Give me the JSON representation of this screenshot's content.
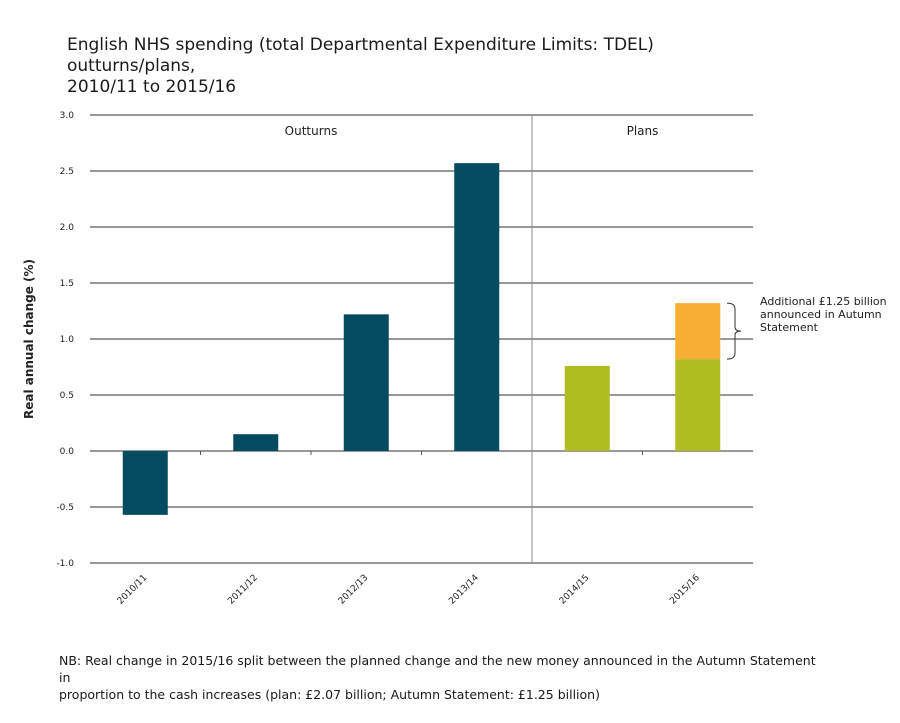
{
  "title": {
    "line1": "English NHS spending (total Departmental Expenditure Limits: TDEL) outturns/plans,",
    "line2": "2010/11 to 2015/16"
  },
  "note": {
    "line1": "NB: Real change in 2015/16 split between the planned change and the new money announced in the Autumn Statement in",
    "line2": "proportion to the cash increases (plan: £2.07 billion; Autumn Statement: £1.25 billion)"
  },
  "chart_data": {
    "type": "bar",
    "stacked": true,
    "title": "English NHS spending (total Departmental Expenditure Limits: TDEL) outturns/plans, 2010/11 to 2015/16",
    "ylabel": "Real annual change (%)",
    "xlabel": "",
    "ylim": [
      -1.0,
      3.0
    ],
    "yticks": [
      "3.0",
      "2.5",
      "2.0",
      "1.5",
      "1.0",
      "0.5",
      "0.0",
      "-0.5",
      "-1.0"
    ],
    "grid": true,
    "categories": [
      "2010/11",
      "2011/12",
      "2012/13",
      "2013/14",
      "2014/15",
      "2015/16"
    ],
    "series": [
      {
        "values": [
          -0.57,
          0.15,
          1.22,
          2.57,
          null,
          null
        ],
        "color": "#044a60"
      },
      {
        "values": [
          null,
          null,
          null,
          null,
          0.76,
          0.82
        ],
        "color": "#afbc22"
      },
      {
        "values": [
          null,
          null,
          null,
          null,
          null,
          0.5
        ],
        "color": "#f8ae32"
      }
    ],
    "sections": [
      {
        "label": "Outturns",
        "categories": [
          "2010/11",
          "2011/12",
          "2012/13",
          "2013/14"
        ]
      },
      {
        "label": "Plans",
        "categories": [
          "2014/15",
          "2015/16"
        ]
      }
    ],
    "annotation": {
      "lines": [
        "Additional £1.25 billion",
        "announced in Autumn",
        "Statement"
      ]
    }
  }
}
